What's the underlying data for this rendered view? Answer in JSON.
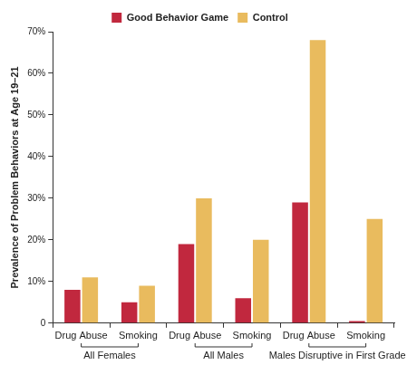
{
  "chart_data": {
    "type": "bar",
    "y_label": "Prevalence of Problem Behaviors at Age 19–21",
    "categories": [
      "Drug Abuse",
      "Smoking",
      "Drug Abuse",
      "Smoking",
      "Drug Abuse",
      "Smoking"
    ],
    "groups": [
      "All Females",
      "All Females",
      "All Males",
      "All Males",
      "Males Disruptive in First Grade",
      "Males Disruptive in First Grade"
    ],
    "series": [
      {
        "name": "Good Behavior Game",
        "color": "#c1283e",
        "values": [
          8,
          5,
          19,
          6,
          29,
          0.5
        ]
      },
      {
        "name": "Control",
        "color": "#e9bb5e",
        "values": [
          11,
          9,
          30,
          20,
          68,
          25
        ]
      }
    ],
    "ylim": [
      0,
      70
    ],
    "yticks": [
      0,
      {
        "value": 10,
        "label": "10%"
      },
      {
        "value": 20,
        "label": "20%"
      },
      {
        "value": 30,
        "label": "30%"
      },
      {
        "value": 40,
        "label": "40%"
      },
      {
        "value": 50,
        "label": "50%"
      },
      {
        "value": 60,
        "label": "60%"
      },
      {
        "value": 70,
        "label": "70%"
      }
    ],
    "grid": false,
    "legend": "top"
  }
}
